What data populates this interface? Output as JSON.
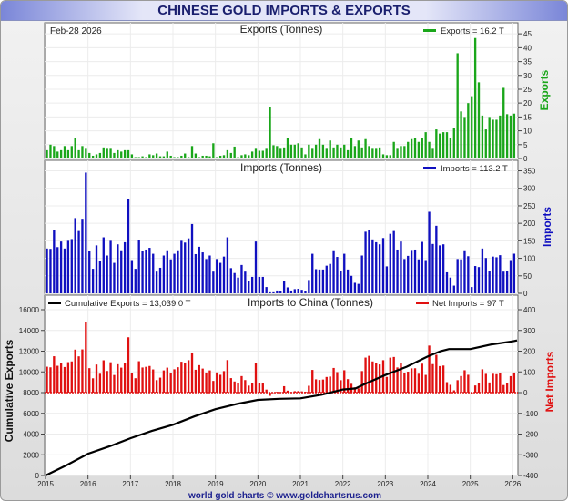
{
  "title": "CHINESE GOLD IMPORTS & EXPORTS",
  "footer": "world gold charts © www.goldchartsrus.com",
  "date_label": "Feb-28  2026",
  "colors": {
    "exports": "#1aa61a",
    "imports": "#1010c0",
    "net": "#e01010",
    "cumulative": "#000000",
    "title": "#1a1f6e"
  },
  "chart_data": [
    {
      "type": "bar",
      "title": "Exports (Tonnes)",
      "ylabel": "Exports",
      "legend": "Exports = 16.2 T",
      "legend_placement": "top-right",
      "ylim": [
        0,
        49
      ],
      "yticks": [
        0,
        5,
        10,
        15,
        20,
        25,
        30,
        35,
        40,
        45
      ],
      "grid": true,
      "start": "2015-01",
      "frequency": "monthly",
      "values": [
        3,
        5,
        4.5,
        2.5,
        3,
        4.5,
        3,
        4.5,
        7.5,
        3,
        4.5,
        3.5,
        2,
        1,
        1.5,
        2,
        4,
        3.5,
        3.5,
        2,
        3,
        2.5,
        3,
        3,
        1.5,
        0.5,
        0.5,
        0.8,
        0.5,
        1.5,
        1.2,
        1.8,
        0.8,
        0.8,
        2.5,
        1,
        0.5,
        0.5,
        1,
        1.8,
        0.5,
        4.5,
        1.8,
        0.5,
        1,
        1,
        0.8,
        5.5,
        0.5,
        1,
        1.2,
        3,
        2,
        4.3,
        0.5,
        1.2,
        1.5,
        1.2,
        2.5,
        3.5,
        2.8,
        2.8,
        3.5,
        18.5,
        4.8,
        4.5,
        3.5,
        4,
        7.5,
        5,
        5,
        5.5,
        4,
        1.5,
        5,
        3.5,
        5,
        7,
        5,
        3.5,
        6.5,
        4,
        5,
        4,
        5,
        3,
        7.5,
        4.5,
        6.5,
        4,
        7,
        4.5,
        3.5,
        3.5,
        4,
        1.5,
        1.2,
        1.2,
        6,
        3.5,
        4.5,
        4.5,
        6,
        7,
        7.5,
        6,
        7.5,
        9.5,
        6,
        3.5,
        10.5,
        9,
        9.5,
        9.5,
        7.5,
        11,
        38,
        17,
        15,
        20,
        22.5,
        43.5,
        27.5,
        15.5,
        10.5,
        15,
        14,
        14,
        15.5,
        25.5,
        16,
        15.5,
        16.2
      ]
    },
    {
      "type": "bar",
      "title": "Imports (Tonnes)",
      "ylabel": "Imports",
      "legend": "Imports = 113.2 T",
      "legend_placement": "top-right",
      "ylim": [
        0,
        380
      ],
      "yticks": [
        0,
        50,
        100,
        150,
        200,
        250,
        300,
        350
      ],
      "grid": true,
      "start": "2015-01",
      "frequency": "monthly",
      "values": [
        128,
        127,
        180,
        132,
        148,
        128,
        150,
        155,
        215,
        178,
        213,
        345,
        120,
        70,
        137,
        93,
        160,
        108,
        150,
        87,
        140,
        123,
        146,
        270,
        95,
        70,
        152,
        122,
        125,
        130,
        113,
        62,
        73,
        108,
        123,
        97,
        113,
        123,
        150,
        145,
        157,
        198,
        112,
        133,
        117,
        98,
        108,
        62,
        98,
        87,
        105,
        160,
        72,
        58,
        45,
        81,
        62,
        35,
        47,
        148,
        47,
        47,
        18,
        3,
        3,
        8,
        6,
        35,
        17,
        8,
        12,
        13,
        10,
        6,
        38,
        113,
        69,
        68,
        68,
        79,
        84,
        123,
        104,
        64,
        113,
        68,
        50,
        30,
        27,
        108,
        176,
        182,
        154,
        146,
        140,
        158,
        77,
        170,
        178,
        125,
        148,
        98,
        107,
        124,
        125,
        97,
        147,
        95,
        233,
        141,
        193,
        137,
        140,
        60,
        45,
        22,
        98,
        97,
        123,
        106,
        18,
        78,
        75,
        128,
        101,
        64,
        105,
        103,
        109,
        62,
        64,
        95,
        113.2
      ]
    },
    {
      "type": "bar+line",
      "title": "Imports to China (Tonnes)",
      "ylabel_left": "Cumulative Exports",
      "ylabel_right": "Net Imports",
      "legend_line": "Cumulative Exports  = 13,039.0 T",
      "legend_bar": "Net Imports = 97 T",
      "ylim_left": [
        0,
        16000
      ],
      "ylim_right": [
        -400,
        400
      ],
      "yticks_left": [
        0,
        2000,
        4000,
        6000,
        8000,
        10000,
        12000,
        14000,
        16000
      ],
      "yticks_right": [
        -400,
        -300,
        -200,
        -100,
        0,
        100,
        200,
        300,
        400
      ],
      "xticks": [
        "2015",
        "2016",
        "2017",
        "2018",
        "2019",
        "2020",
        "2021",
        "2022",
        "2023",
        "2024",
        "2025",
        "2026"
      ],
      "xlim": [
        2015,
        2026.1
      ],
      "net_imports": "imports minus exports (monthly)",
      "cumulative": {
        "x": [
          2015.0,
          2015.5,
          2016.0,
          2016.5,
          2017.0,
          2017.5,
          2018.0,
          2018.5,
          2019.0,
          2019.5,
          2020.0,
          2020.5,
          2021.0,
          2021.5,
          2022.0,
          2022.3,
          2022.5,
          2023.0,
          2023.5,
          2024.0,
          2024.3,
          2024.5,
          2025.0,
          2025.5,
          2026.0,
          2026.1
        ],
        "y": [
          0,
          1000,
          2100,
          2800,
          3600,
          4300,
          4900,
          5700,
          6400,
          6900,
          7300,
          7400,
          7450,
          7800,
          8300,
          8400,
          8800,
          9700,
          10500,
          11500,
          12000,
          12200,
          12200,
          12650,
          12950,
          13039
        ]
      }
    }
  ]
}
